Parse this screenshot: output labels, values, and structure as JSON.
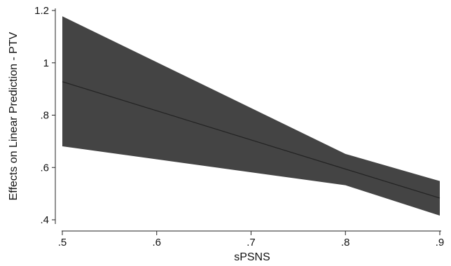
{
  "chart_data": {
    "type": "area",
    "xlabel": "sPSNS",
    "ylabel": "Effects on Linear Prediction - PTV",
    "xlim": [
      0.5,
      0.9
    ],
    "ylim": [
      0.4,
      1.2
    ],
    "x_ticks": [
      {
        "value": 0.5,
        "label": ".5"
      },
      {
        "value": 0.6,
        "label": ".6"
      },
      {
        "value": 0.7,
        "label": ".7"
      },
      {
        "value": 0.8,
        "label": ".8"
      },
      {
        "value": 0.9,
        "label": ".9"
      }
    ],
    "y_ticks": [
      {
        "value": 0.4,
        "label": ".4"
      },
      {
        "value": 0.6,
        "label": ".6"
      },
      {
        "value": 0.8,
        "label": ".8"
      },
      {
        "value": 1.0,
        "label": "1"
      },
      {
        "value": 1.2,
        "label": "1.2"
      }
    ],
    "x": [
      0.5,
      0.8,
      0.9
    ],
    "series": [
      {
        "role": "fit",
        "values": [
          0.928,
          0.594,
          0.483
        ]
      },
      {
        "role": "upper",
        "values": [
          1.178,
          0.652,
          0.548
        ]
      },
      {
        "role": "lower",
        "values": [
          0.681,
          0.532,
          0.416
        ]
      }
    ],
    "band_color": "#444444",
    "line_color": "#222222",
    "grid": false
  }
}
